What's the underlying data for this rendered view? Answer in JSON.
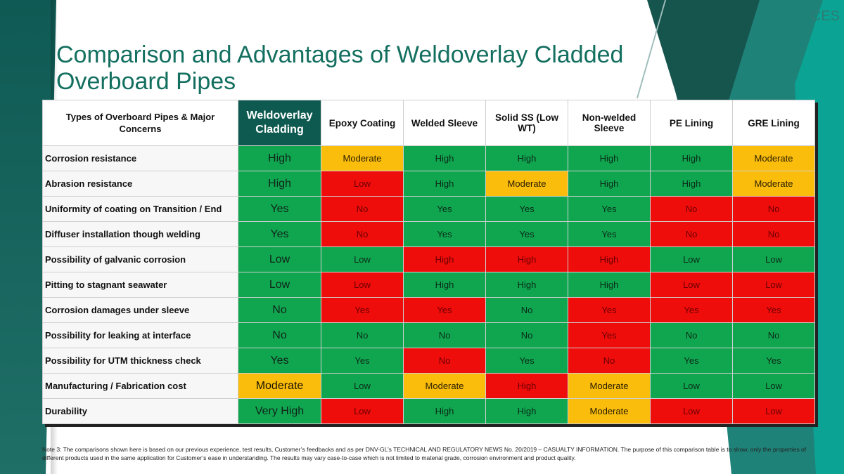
{
  "slide": {
    "title": "Comparison and Advantages of Weldoverlay Cladded Overboard Pipes",
    "corner_mark": "CES",
    "note": "Note 3: The comparisons shown here is based on our previous experience, test results, Customer’s feedbacks and as per DNV-GL’s TECHNICAL AND REGULATORY NEWS No. 20/2019 – CASUALTY INFORMATION. The purpose of this comparison table is to show, only the properties of different products used in the same application for Customer’s ease in understanding. The results may vary case-to-case which is not limited to material grade, corrosion environment and product quality."
  },
  "colors": {
    "high_good": "#10a650",
    "moderate": "#fbbd0c",
    "bad": "#ee0d0b",
    "header_accent": "#0e5a50",
    "title": "#136f5f"
  },
  "table": {
    "headers": [
      "Types of Overboard Pipes & Major Concerns",
      "Weldoverlay Cladding",
      "Epoxy Coating",
      "Welded Sleeve",
      "Solid SS (Low WT)",
      "Non-welded Sleeve",
      "PE Lining",
      "GRE Lining"
    ],
    "rows": [
      {
        "concern": "Corrosion resistance",
        "values": [
          "High",
          "Moderate",
          "High",
          "High",
          "High",
          "High",
          "Moderate"
        ],
        "ratings": [
          "green",
          "amber",
          "green",
          "green",
          "green",
          "green",
          "amber"
        ]
      },
      {
        "concern": "Abrasion resistance",
        "values": [
          "High",
          "Low",
          "High",
          "Moderate",
          "High",
          "High",
          "Moderate"
        ],
        "ratings": [
          "green",
          "red",
          "green",
          "amber",
          "green",
          "green",
          "amber"
        ]
      },
      {
        "concern": "Uniformity of coating on Transition / End",
        "values": [
          "Yes",
          "No",
          "Yes",
          "Yes",
          "Yes",
          "No",
          "No"
        ],
        "ratings": [
          "green",
          "red",
          "green",
          "green",
          "green",
          "red",
          "red"
        ]
      },
      {
        "concern": "Diffuser installation though welding",
        "values": [
          "Yes",
          "No",
          "Yes",
          "Yes",
          "Yes",
          "No",
          "No"
        ],
        "ratings": [
          "green",
          "red",
          "green",
          "green",
          "green",
          "red",
          "red"
        ]
      },
      {
        "concern": "Possibility of galvanic corrosion",
        "values": [
          "Low",
          "Low",
          "High",
          "High",
          "High",
          "Low",
          "Low"
        ],
        "ratings": [
          "green",
          "green",
          "red",
          "red",
          "red",
          "green",
          "green"
        ]
      },
      {
        "concern": "Pitting to stagnant seawater",
        "values": [
          "Low",
          "Low",
          "High",
          "High",
          "High",
          "Low",
          "Low"
        ],
        "ratings": [
          "green",
          "red",
          "green",
          "green",
          "green",
          "red",
          "red"
        ]
      },
      {
        "concern": "Corrosion damages under sleeve",
        "values": [
          "No",
          "Yes",
          "Yes",
          "No",
          "Yes",
          "Yes",
          "Yes"
        ],
        "ratings": [
          "green",
          "red",
          "red",
          "green",
          "red",
          "red",
          "red"
        ]
      },
      {
        "concern": "Possibility for leaking at interface",
        "values": [
          "No",
          "No",
          "No",
          "No",
          "Yes",
          "No",
          "No"
        ],
        "ratings": [
          "green",
          "green",
          "green",
          "green",
          "red",
          "green",
          "green"
        ]
      },
      {
        "concern": "Possibility for UTM thickness check",
        "values": [
          "Yes",
          "Yes",
          "No",
          "Yes",
          "No",
          "Yes",
          "Yes"
        ],
        "ratings": [
          "green",
          "green",
          "red",
          "green",
          "red",
          "green",
          "green"
        ]
      },
      {
        "concern": "Manufacturing / Fabrication cost",
        "values": [
          "Moderate",
          "Low",
          "Moderate",
          "High",
          "Moderate",
          "Low",
          "Low"
        ],
        "ratings": [
          "amber",
          "green",
          "amber",
          "red",
          "amber",
          "green",
          "green"
        ]
      },
      {
        "concern": "Durability",
        "values": [
          "Very High",
          "Low",
          "High",
          "High",
          "Moderate",
          "Low",
          "Low"
        ],
        "ratings": [
          "green",
          "red",
          "green",
          "green",
          "amber",
          "red",
          "red"
        ]
      }
    ]
  }
}
